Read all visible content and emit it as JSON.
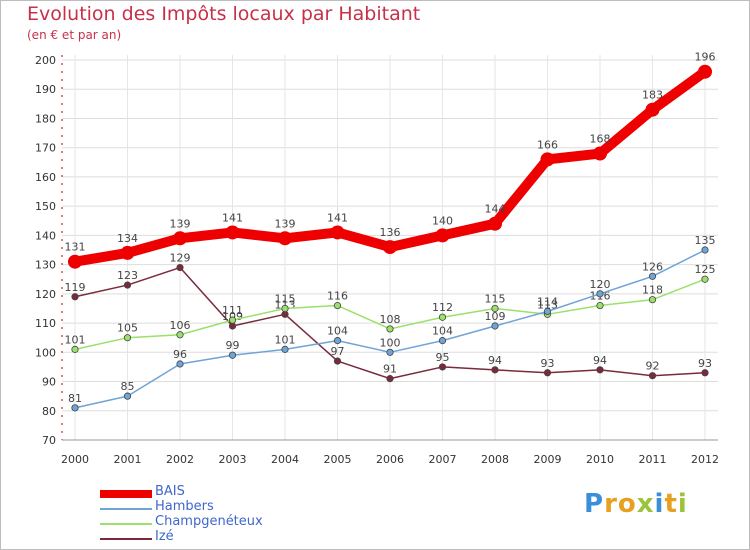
{
  "title": "Evolution des Impôts locaux par Habitant",
  "subtitle": "(en € et par an)",
  "brand": {
    "letters": [
      "P",
      "r",
      "o",
      "x",
      "i",
      "t",
      "i"
    ],
    "colors": [
      "#3a8fd8",
      "#e8a020",
      "#e8a020",
      "#9ac43a",
      "#3a8fd8",
      "#e8a020",
      "#9ac43a"
    ]
  },
  "chart_data": {
    "type": "line",
    "categories": [
      "2000",
      "2001",
      "2002",
      "2003",
      "2004",
      "2005",
      "2006",
      "2007",
      "2008",
      "2009",
      "2010",
      "2011",
      "2012"
    ],
    "ylim": [
      70,
      200
    ],
    "yticks": [
      70,
      80,
      90,
      100,
      110,
      120,
      130,
      140,
      150,
      160,
      170,
      180,
      190,
      200
    ],
    "grid": true,
    "legend_position": "bottom-left",
    "series": [
      {
        "name": "Izé",
        "color": "#7a2a3a",
        "values": [
          119,
          123,
          129,
          109,
          113,
          97,
          91,
          95,
          94,
          93,
          94,
          92,
          93
        ]
      },
      {
        "name": "Champgenéteux",
        "color": "#9be06a",
        "values": [
          101,
          105,
          106,
          111,
          115,
          116,
          108,
          112,
          115,
          113,
          116,
          118,
          125
        ]
      },
      {
        "name": "Hambers",
        "color": "#6fa4d6",
        "values": [
          81,
          85,
          96,
          99,
          101,
          104,
          100,
          104,
          109,
          114,
          120,
          126,
          135
        ]
      },
      {
        "name": "BAIS",
        "color": "#ee0000",
        "values": [
          131,
          134,
          139,
          141,
          139,
          141,
          136,
          140,
          144,
          166,
          168,
          183,
          196
        ]
      }
    ],
    "legend_order": [
      "BAIS",
      "Hambers",
      "Champgenéteux",
      "Izé"
    ]
  }
}
